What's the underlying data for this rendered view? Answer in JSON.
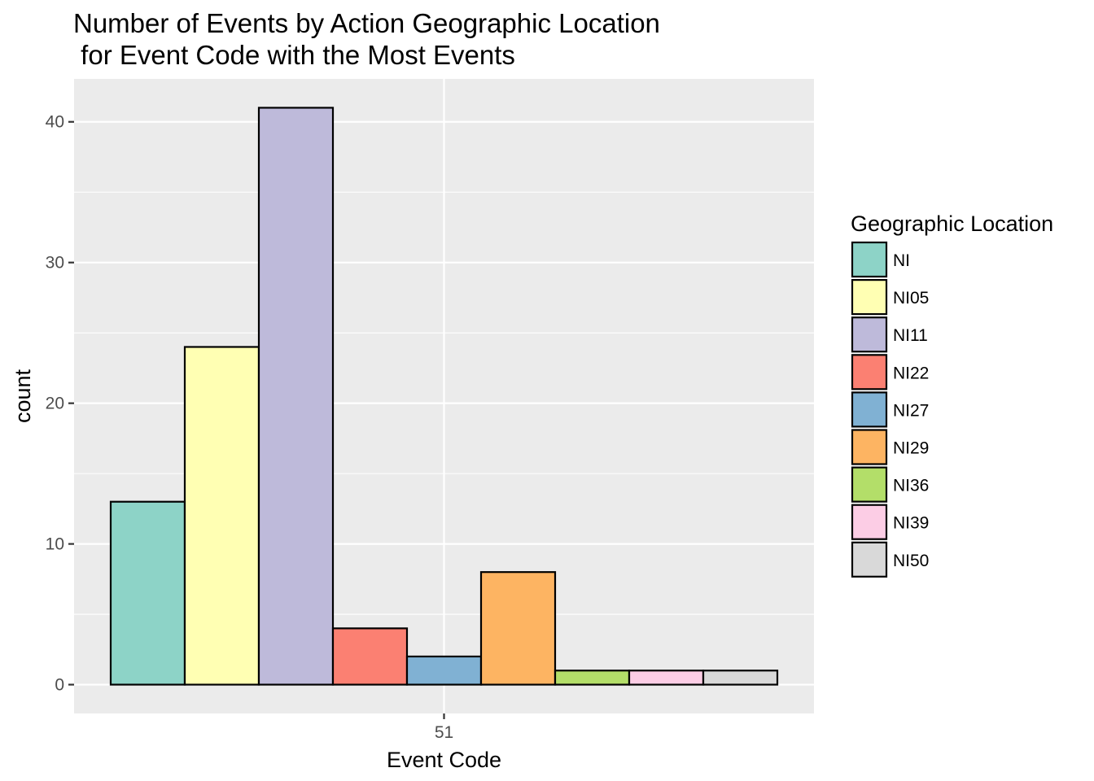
{
  "chart_data": {
    "type": "bar",
    "title_lines": [
      "Number of Events by Action Geographic Location",
      " for Event Code with the Most Events"
    ],
    "xlabel": "Event Code",
    "ylabel": "count",
    "categories": [
      "51"
    ],
    "series": [
      {
        "name": "NI",
        "values": [
          13
        ],
        "color": "#8DD3C7"
      },
      {
        "name": "NI05",
        "values": [
          24
        ],
        "color": "#FFFFB3"
      },
      {
        "name": "NI11",
        "values": [
          41
        ],
        "color": "#BEBADA"
      },
      {
        "name": "NI22",
        "values": [
          4
        ],
        "color": "#FB8072"
      },
      {
        "name": "NI27",
        "values": [
          2
        ],
        "color": "#80B1D3"
      },
      {
        "name": "NI29",
        "values": [
          8
        ],
        "color": "#FDB462"
      },
      {
        "name": "NI36",
        "values": [
          1
        ],
        "color": "#B3DE69"
      },
      {
        "name": "NI39",
        "values": [
          1
        ],
        "color": "#FCCDE5"
      },
      {
        "name": "NI50",
        "values": [
          1
        ],
        "color": "#D9D9D9"
      }
    ],
    "y_ticks": [
      0,
      10,
      20,
      30,
      40
    ],
    "ylim": [
      -2.05,
      43.05
    ],
    "grid": true,
    "legend": {
      "title": "Geographic Location",
      "position": "right"
    },
    "colors": {
      "panel_background": "#EBEBEB",
      "grid_line": "#FFFFFF",
      "bar_outline": "#000000",
      "tick_text": "#4D4D4D"
    }
  }
}
